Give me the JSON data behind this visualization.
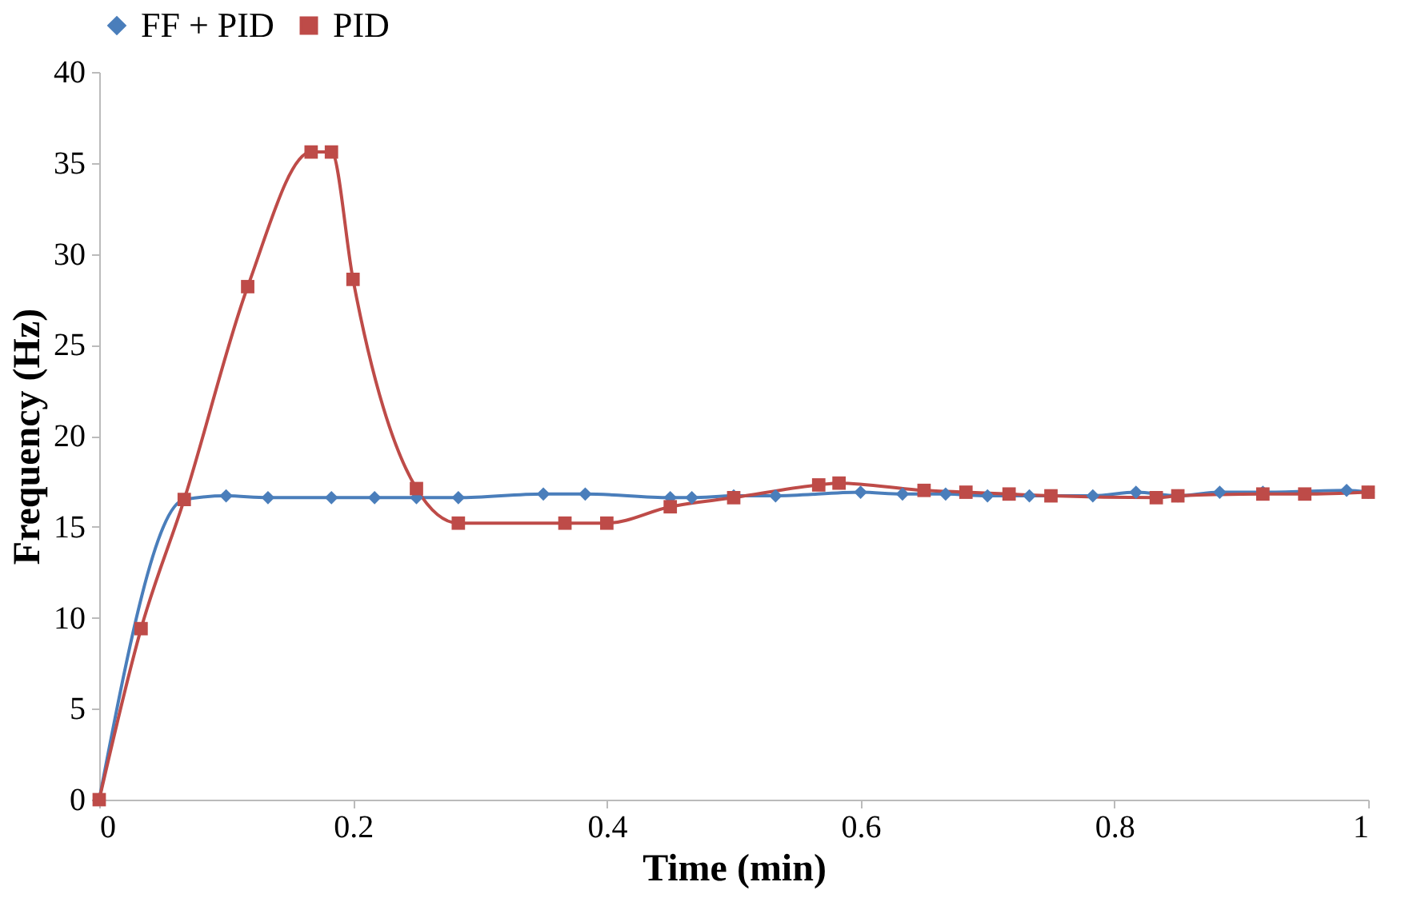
{
  "chart_data": {
    "type": "line",
    "xlabel": "Time (min)",
    "ylabel": "Frequency (Hz)",
    "xlim": [
      0,
      1
    ],
    "xticks": [
      0,
      0.2,
      0.4,
      0.6,
      0.8,
      1
    ],
    "ylim": [
      0,
      40
    ],
    "yticks": [
      0,
      5,
      10,
      15,
      20,
      25,
      30,
      35,
      40
    ],
    "grid": false,
    "legend": "top",
    "series": [
      {
        "name": "FF + PID",
        "color": "#4a7ebb",
        "marker": "diamond",
        "x": [
          0,
          0.067,
          0.1,
          0.133,
          0.183,
          0.217,
          0.25,
          0.283,
          0.35,
          0.383,
          0.45,
          0.467,
          0.5,
          0.533,
          0.6,
          0.633,
          0.667,
          0.7,
          0.733,
          0.783,
          0.817,
          0.85,
          0.883,
          0.917,
          0.983,
          1
        ],
        "values": [
          0,
          16.5,
          16.7,
          16.6,
          16.6,
          16.6,
          16.6,
          16.6,
          16.8,
          16.8,
          16.6,
          16.6,
          16.7,
          16.7,
          16.9,
          16.8,
          16.8,
          16.7,
          16.7,
          16.7,
          16.9,
          16.7,
          16.9,
          16.9,
          17.0,
          16.9
        ]
      },
      {
        "name": "PID",
        "color": "#be4b48",
        "marker": "square",
        "x": [
          0,
          0.033,
          0.067,
          0.117,
          0.167,
          0.183,
          0.2,
          0.25,
          0.283,
          0.367,
          0.4,
          0.45,
          0.5,
          0.567,
          0.583,
          0.65,
          0.683,
          0.717,
          0.75,
          0.833,
          0.85,
          0.917,
          0.95,
          1
        ],
        "values": [
          0,
          9.4,
          16.5,
          28.2,
          35.6,
          35.6,
          28.6,
          17.1,
          15.2,
          15.2,
          15.2,
          16.1,
          16.6,
          17.3,
          17.4,
          17.0,
          16.9,
          16.8,
          16.7,
          16.6,
          16.7,
          16.8,
          16.8,
          16.9
        ]
      }
    ]
  }
}
